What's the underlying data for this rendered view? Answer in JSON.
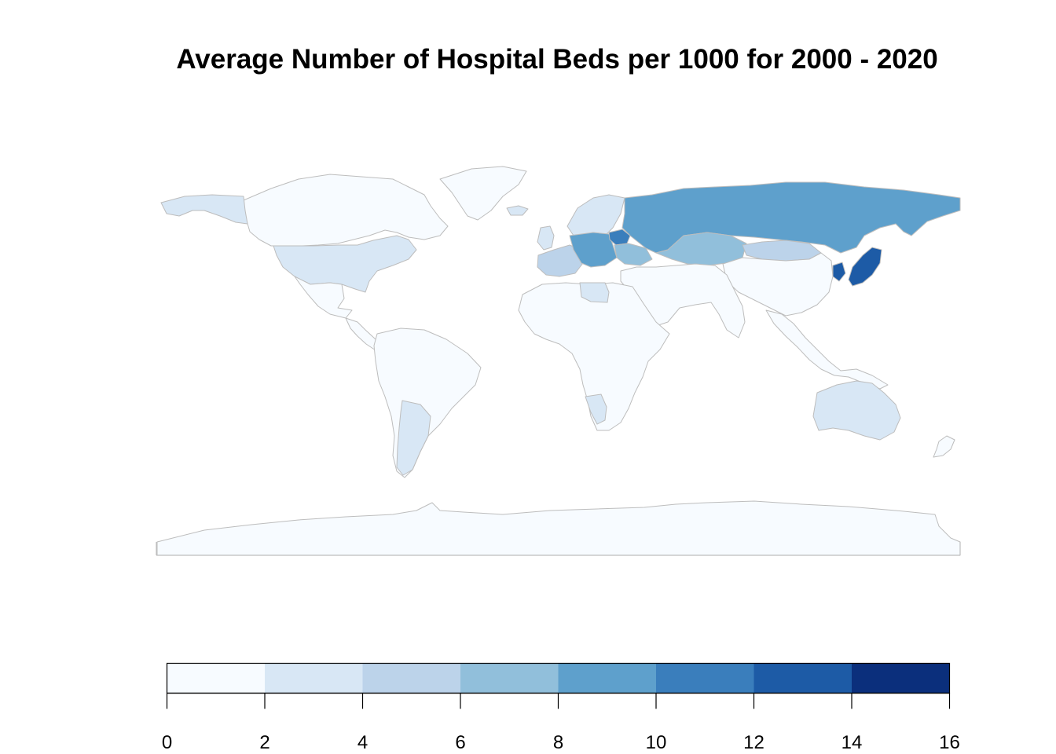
{
  "title": "Average Number of Hospital Beds per 1000 for 2000 - 2020",
  "legend": {
    "breaks": [
      0,
      2,
      4,
      6,
      8,
      10,
      12,
      14,
      16
    ],
    "tick_labels": [
      "0",
      "2",
      "4",
      "6",
      "8",
      "10",
      "12",
      "14",
      "16"
    ],
    "colors": [
      "#f7fbff",
      "#d8e7f5",
      "#bcd3ea",
      "#91bfdb",
      "#5ea0cc",
      "#3a7ebc",
      "#1d5ba6",
      "#0b2f7c"
    ]
  },
  "map_data": {
    "border_color": "#bdbdbd",
    "regions": [
      {
        "name": "Canada",
        "bin": 0
      },
      {
        "name": "Greenland",
        "bin": 0
      },
      {
        "name": "USA",
        "bin": 1
      },
      {
        "name": "Alaska",
        "bin": 1
      },
      {
        "name": "Mexico",
        "bin": 0
      },
      {
        "name": "Central America",
        "bin": 0
      },
      {
        "name": "South America",
        "bin": 0
      },
      {
        "name": "Argentina",
        "bin": 1
      },
      {
        "name": "Iceland",
        "bin": 1
      },
      {
        "name": "Scandinavia",
        "bin": 1
      },
      {
        "name": "UK & Ireland",
        "bin": 1
      },
      {
        "name": "Western Europe",
        "bin": 2
      },
      {
        "name": "Central Europe",
        "bin": 4
      },
      {
        "name": "Belarus",
        "bin": 5
      },
      {
        "name": "Ukraine",
        "bin": 3
      },
      {
        "name": "Russia",
        "bin": 4
      },
      {
        "name": "Kazakhstan",
        "bin": 3
      },
      {
        "name": "Mongolia",
        "bin": 2
      },
      {
        "name": "Japan",
        "bin": 6
      },
      {
        "name": "Korea",
        "bin": 6
      },
      {
        "name": "China",
        "bin": 0
      },
      {
        "name": "Middle East & South Asia",
        "bin": 0
      },
      {
        "name": "Southeast Asia",
        "bin": 0
      },
      {
        "name": "Africa",
        "bin": 0
      },
      {
        "name": "Libya",
        "bin": 1
      },
      {
        "name": "Namibia",
        "bin": 1
      },
      {
        "name": "Australia",
        "bin": 1
      },
      {
        "name": "New Zealand",
        "bin": 0
      },
      {
        "name": "Antarctica",
        "bin": 0
      }
    ]
  }
}
